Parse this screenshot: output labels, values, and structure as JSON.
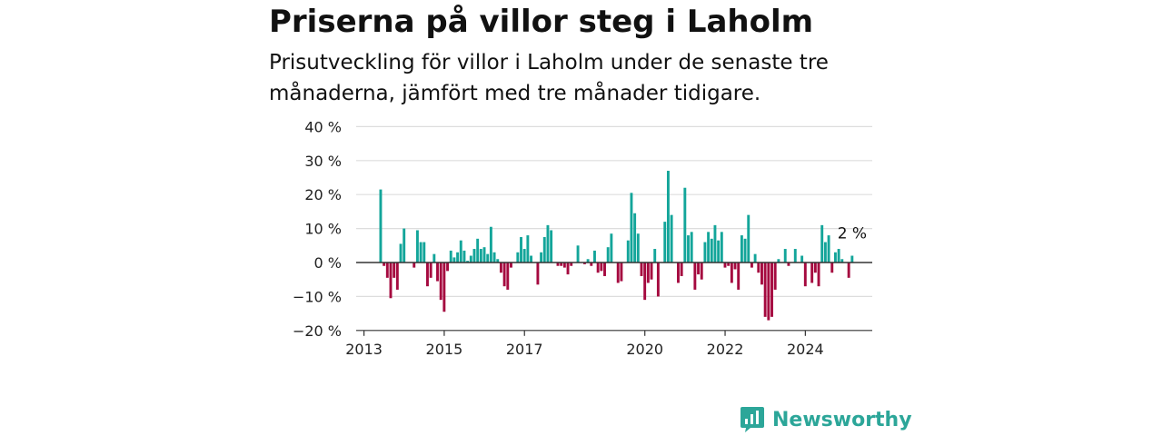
{
  "brand": "Newsworthy",
  "colors": {
    "positive": "#13a59a",
    "negative": "#a5093f",
    "grid": "#dddddd",
    "axis": "#333333",
    "brand": "#2ca699"
  },
  "chart_data": {
    "type": "bar",
    "title": "Priserna på villor steg i Laholm",
    "subtitle": "Prisutveckling för villor i Laholm under de senaste tre månaderna, jämfört med tre månader tidigare.",
    "x_start": "2013-06",
    "x_ticks": [
      "2013",
      "2015",
      "2017",
      "2020",
      "2022",
      "2024"
    ],
    "y_ticks": [
      {
        "value": 40,
        "label": "40 %"
      },
      {
        "value": 30,
        "label": "30 %"
      },
      {
        "value": 20,
        "label": "20 %"
      },
      {
        "value": 10,
        "label": "10 %"
      },
      {
        "value": 0,
        "label": "0 %"
      },
      {
        "value": -10,
        "label": "−10 %"
      },
      {
        "value": -20,
        "label": "−20 %"
      }
    ],
    "ylim": [
      -20,
      40
    ],
    "grid": true,
    "legend": "none",
    "last_label": "2 %",
    "values": [
      21.5,
      -1,
      -4.5,
      -10.5,
      -4.5,
      -8,
      5.5,
      10,
      0,
      0,
      -1.5,
      9.5,
      6,
      6,
      -7,
      -4.5,
      2.5,
      -5.5,
      -11,
      -14.5,
      -2.5,
      3.5,
      1.5,
      3,
      6.5,
      3.5,
      0.5,
      2,
      4,
      7,
      4,
      4.5,
      2.5,
      10.5,
      3,
      1,
      -3,
      -7,
      -8,
      -1.5,
      0,
      3,
      7.5,
      4,
      8,
      2,
      0,
      -6.5,
      3,
      7.5,
      11,
      9.5,
      0,
      -1,
      -1,
      -1.5,
      -3.5,
      -1,
      0,
      5,
      0,
      -0.5,
      1,
      -1,
      3.5,
      -3,
      -2.5,
      -4,
      4.5,
      8.5,
      0,
      -6,
      -5.5,
      0,
      6.5,
      20.5,
      14.5,
      8.5,
      -4,
      -11,
      -6,
      -5,
      4,
      -10,
      0,
      12,
      27,
      14,
      0,
      -6,
      -4,
      22,
      8,
      9,
      -8,
      -3.5,
      -5,
      6,
      9,
      7,
      11,
      6.5,
      9,
      -1.5,
      -1,
      -6,
      -2,
      -8,
      8,
      7,
      14,
      -1.5,
      2.5,
      -3,
      -6.5,
      -16,
      -17,
      -16,
      -8,
      1,
      0,
      4,
      -1,
      0,
      4,
      0,
      2,
      -7,
      0,
      -6,
      -3,
      -7,
      11,
      6,
      8,
      -3,
      3,
      4,
      1,
      0,
      -4.5,
      2
    ]
  }
}
